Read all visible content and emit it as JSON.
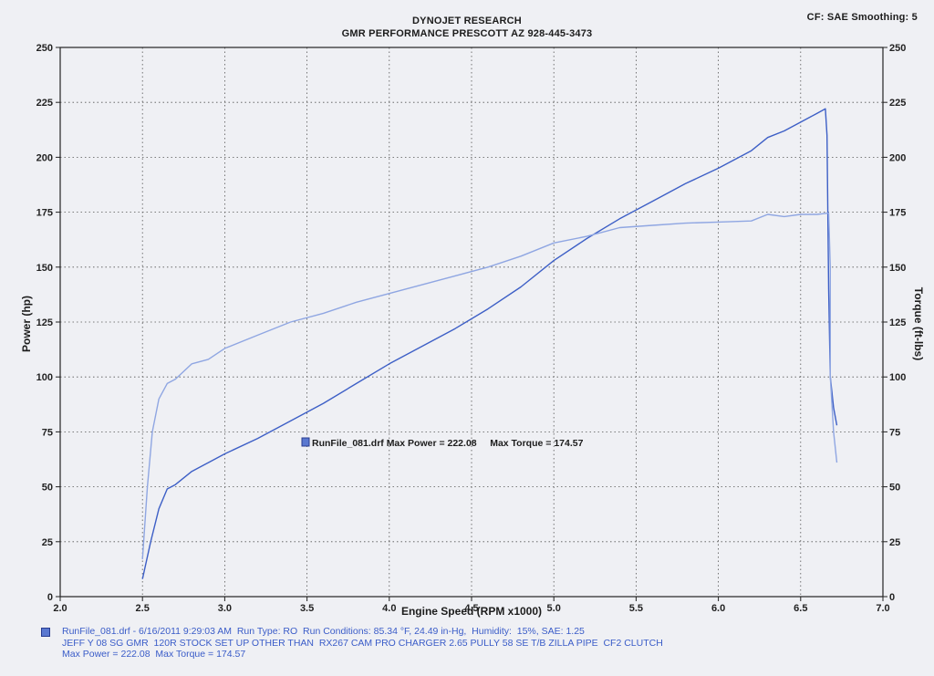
{
  "header": {
    "title": "DYNOJET RESEARCH",
    "subtitle": "GMR PERFORMANCE  PRESCOTT AZ  928-445-3473",
    "cf": "CF: SAE  Smoothing: 5"
  },
  "chart_data": {
    "type": "line",
    "title": "DYNOJET RESEARCH",
    "xlabel": "Engine Speed (RPM x1000)",
    "ylabel": "Power (hp)",
    "y2label": "Torque (ft-lbs)",
    "xlim": [
      2.0,
      7.0
    ],
    "ylim": [
      0,
      250
    ],
    "y2lim": [
      0,
      250
    ],
    "x_ticks": [
      "2.0",
      "2.5",
      "3.0",
      "3.5",
      "4.0",
      "4.5",
      "5.0",
      "5.5",
      "6.0",
      "6.5",
      "7.0"
    ],
    "y_ticks": [
      "0",
      "25",
      "50",
      "75",
      "100",
      "125",
      "150",
      "175",
      "200",
      "225",
      "250"
    ],
    "y2_ticks": [
      "0",
      "25",
      "50",
      "75",
      "100",
      "125",
      "150",
      "175",
      "200",
      "225",
      "250"
    ],
    "grid": true,
    "legend_text": "RunFile_081.drf Max Power = 222.08     Max Torque = 174.57",
    "series": [
      {
        "name": "Power",
        "axis": "left",
        "color": "#3d5fc6",
        "points": [
          [
            2.5,
            8
          ],
          [
            2.55,
            25
          ],
          [
            2.6,
            40
          ],
          [
            2.65,
            49
          ],
          [
            2.7,
            51
          ],
          [
            2.8,
            57
          ],
          [
            2.9,
            61
          ],
          [
            3.0,
            65
          ],
          [
            3.2,
            72
          ],
          [
            3.4,
            80
          ],
          [
            3.6,
            88
          ],
          [
            3.8,
            97
          ],
          [
            4.0,
            106
          ],
          [
            4.2,
            114
          ],
          [
            4.4,
            122
          ],
          [
            4.6,
            131
          ],
          [
            4.8,
            141
          ],
          [
            5.0,
            153
          ],
          [
            5.2,
            163
          ],
          [
            5.4,
            172
          ],
          [
            5.6,
            180
          ],
          [
            5.8,
            188
          ],
          [
            6.0,
            195
          ],
          [
            6.2,
            203
          ],
          [
            6.3,
            209
          ],
          [
            6.4,
            212
          ],
          [
            6.5,
            216
          ],
          [
            6.6,
            220
          ],
          [
            6.65,
            222.08
          ],
          [
            6.66,
            210
          ],
          [
            6.67,
            140
          ],
          [
            6.68,
            100
          ],
          [
            6.7,
            86
          ],
          [
            6.72,
            78
          ]
        ]
      },
      {
        "name": "Torque",
        "axis": "right",
        "color": "#8fa6e2",
        "points": [
          [
            2.5,
            17
          ],
          [
            2.53,
            50
          ],
          [
            2.56,
            75
          ],
          [
            2.6,
            90
          ],
          [
            2.65,
            97
          ],
          [
            2.7,
            99
          ],
          [
            2.8,
            106
          ],
          [
            2.9,
            108
          ],
          [
            3.0,
            113
          ],
          [
            3.2,
            119
          ],
          [
            3.4,
            125
          ],
          [
            3.6,
            129
          ],
          [
            3.8,
            134
          ],
          [
            4.0,
            138
          ],
          [
            4.2,
            142
          ],
          [
            4.4,
            146
          ],
          [
            4.6,
            150
          ],
          [
            4.8,
            155
          ],
          [
            5.0,
            161
          ],
          [
            5.2,
            164
          ],
          [
            5.4,
            168
          ],
          [
            5.6,
            169
          ],
          [
            5.8,
            170
          ],
          [
            6.0,
            170.5
          ],
          [
            6.2,
            171
          ],
          [
            6.3,
            174
          ],
          [
            6.4,
            173
          ],
          [
            6.5,
            174
          ],
          [
            6.6,
            174
          ],
          [
            6.67,
            174.57
          ],
          [
            6.68,
            150
          ],
          [
            6.68,
            100
          ],
          [
            6.7,
            75
          ],
          [
            6.72,
            61
          ]
        ]
      }
    ]
  },
  "footer": {
    "line1": "RunFile_081.drf - 6/16/2011 9:29:03 AM  Run Type: RO  Run Conditions: 85.34 °F, 24.49 in-Hg,  Humidity:  15%, SAE: 1.25",
    "line2": "JEFF Y 08 SG GMR  120R STOCK SET UP OTHER THAN  RX267 CAM PRO CHARGER 2.65 PULLY 58 SE T/B ZILLA PIPE  CF2 CLUTCH",
    "line3": "Max Power = 222.08  Max Torque = 174.57"
  }
}
